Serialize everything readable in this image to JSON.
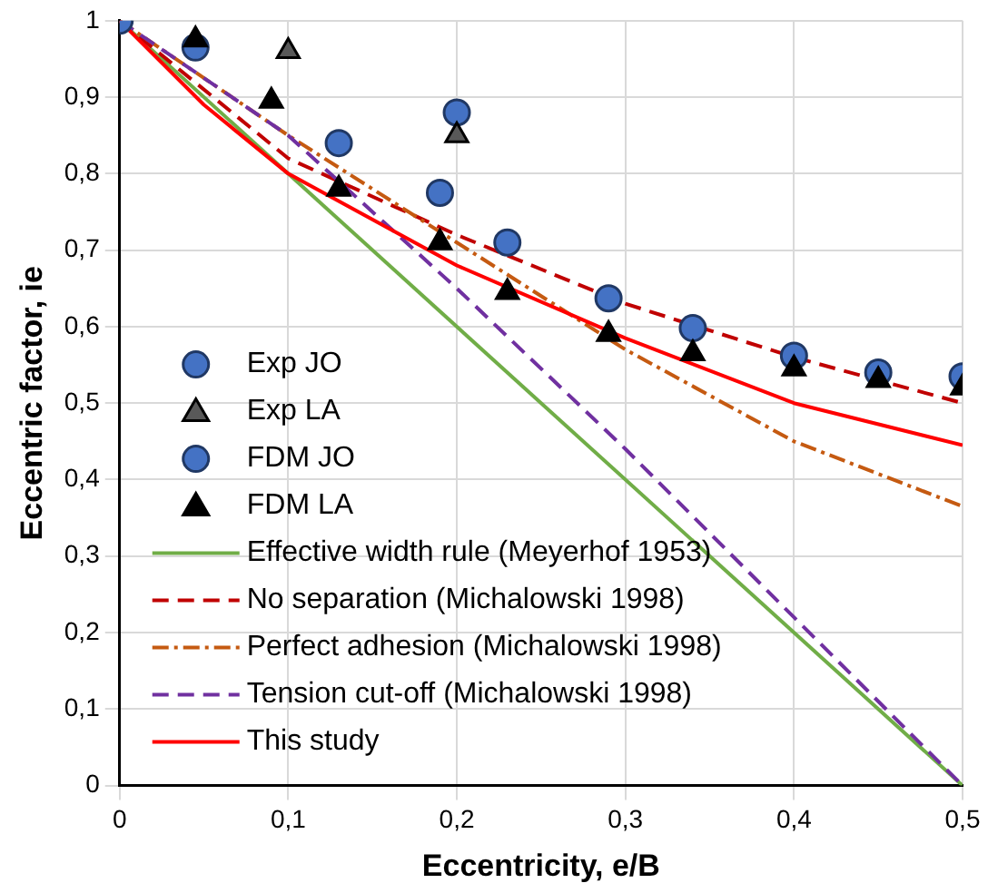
{
  "chart_data": {
    "type": "scatter",
    "xlabel": "Eccentricity, e/B",
    "ylabel": "Eccentric factor, ie",
    "xlim": [
      0,
      0.5
    ],
    "xticks": [
      {
        "value": 0,
        "label": "0"
      },
      {
        "value": 0.1,
        "label": "0,1"
      },
      {
        "value": 0.2,
        "label": "0,2"
      },
      {
        "value": 0.3,
        "label": "0,3"
      },
      {
        "value": 0.4,
        "label": "0,4"
      },
      {
        "value": 0.5,
        "label": "0,5"
      }
    ],
    "ylim": [
      0,
      1
    ],
    "yticks": [
      {
        "value": 0,
        "label": "0"
      },
      {
        "value": 0.1,
        "label": "0,1"
      },
      {
        "value": 0.2,
        "label": "0,2"
      },
      {
        "value": 0.3,
        "label": "0,3"
      },
      {
        "value": 0.4,
        "label": "0,4"
      },
      {
        "value": 0.5,
        "label": "0,5"
      },
      {
        "value": 0.6,
        "label": "0,6"
      },
      {
        "value": 0.7,
        "label": "0,7"
      },
      {
        "value": 0.8,
        "label": "0,8"
      },
      {
        "value": 0.9,
        "label": "0,9"
      },
      {
        "value": 1,
        "label": "1"
      }
    ],
    "grid": true,
    "legend": "bottom left",
    "series": [
      {
        "name": "Exp JO",
        "marker": "circle",
        "color": "#4472c4",
        "x": [
          0,
          0.2
        ],
        "values": [
          1,
          0.88
        ]
      },
      {
        "name": "Exp LA",
        "marker": "triangle",
        "color": "#595959",
        "x": [
          0.1,
          0.2
        ],
        "values": [
          0.96,
          0.85
        ]
      },
      {
        "name": "FDM JO",
        "marker": "circle",
        "color": "#4472c4",
        "x": [
          0.045,
          0.13,
          0.19,
          0.23,
          0.29,
          0.34,
          0.4,
          0.45,
          0.5
        ],
        "values": [
          0.965,
          0.84,
          0.775,
          0.71,
          0.637,
          0.598,
          0.562,
          0.54,
          0.535
        ]
      },
      {
        "name": "FDM LA",
        "marker": "triangle",
        "color": "#000000",
        "x": [
          0.045,
          0.09,
          0.13,
          0.19,
          0.23,
          0.29,
          0.34,
          0.4,
          0.45,
          0.5
        ],
        "values": [
          0.975,
          0.895,
          0.78,
          0.71,
          0.645,
          0.59,
          0.565,
          0.545,
          0.53,
          0.52
        ]
      },
      {
        "name": "Effective width rule (Meyerhof 1953)",
        "type": "line",
        "line_style": "solid",
        "color": "#70ad47",
        "x": [
          0,
          0.5
        ],
        "values": [
          1,
          0
        ]
      },
      {
        "name": "No separation (Michalowski 1998)",
        "type": "line",
        "line_style": "dashed",
        "color": "#c00000",
        "x": [
          0,
          0.1,
          0.2,
          0.3,
          0.4,
          0.5
        ],
        "values": [
          1,
          0.82,
          0.72,
          0.63,
          0.56,
          0.5
        ]
      },
      {
        "name": "Perfect adhesion (Michalowski 1998)",
        "type": "line",
        "line_style": "dashdot",
        "color": "#c55a11",
        "x": [
          0,
          0.1,
          0.2,
          0.3,
          0.4,
          0.5
        ],
        "values": [
          1,
          0.85,
          0.71,
          0.57,
          0.45,
          0.365
        ]
      },
      {
        "name": "Tension cut-off (Michalowski 1998)",
        "type": "line",
        "line_style": "dashed",
        "color": "#7030a0",
        "x": [
          0,
          0.1,
          0.2,
          0.3,
          0.4,
          0.5
        ],
        "values": [
          1,
          0.85,
          0.65,
          0.44,
          0.22,
          0
        ]
      },
      {
        "name": "This study",
        "type": "line",
        "line_style": "solid",
        "color": "#ff0000",
        "x": [
          0,
          0.05,
          0.1,
          0.2,
          0.3,
          0.4,
          0.5
        ],
        "values": [
          1,
          0.89,
          0.8,
          0.68,
          0.585,
          0.5,
          0.445
        ]
      }
    ]
  }
}
